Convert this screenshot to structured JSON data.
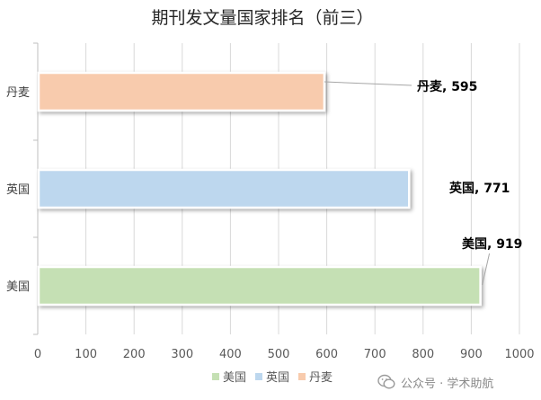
{
  "chart_data": {
    "type": "bar",
    "orientation": "horizontal",
    "title": "期刊发文量国家排名（前三）",
    "categories": [
      "美国",
      "英国",
      "丹麦"
    ],
    "values": [
      919,
      771,
      595
    ],
    "colors": [
      "#c5e0b4",
      "#bdd7ee",
      "#f8cbad"
    ],
    "data_labels": [
      "美国, 919",
      "英国, 771",
      "丹麦, 595"
    ],
    "xlim": [
      0,
      1000
    ],
    "xticks": [
      "0",
      "100",
      "200",
      "300",
      "400",
      "500",
      "600",
      "700",
      "800",
      "900",
      "1000"
    ],
    "grid": true,
    "legend": {
      "position": "bottom",
      "items": [
        "美国",
        "英国",
        "丹麦"
      ]
    }
  },
  "watermark": {
    "text": "公众号 · 学术助航",
    "icon": "wechat-icon"
  }
}
